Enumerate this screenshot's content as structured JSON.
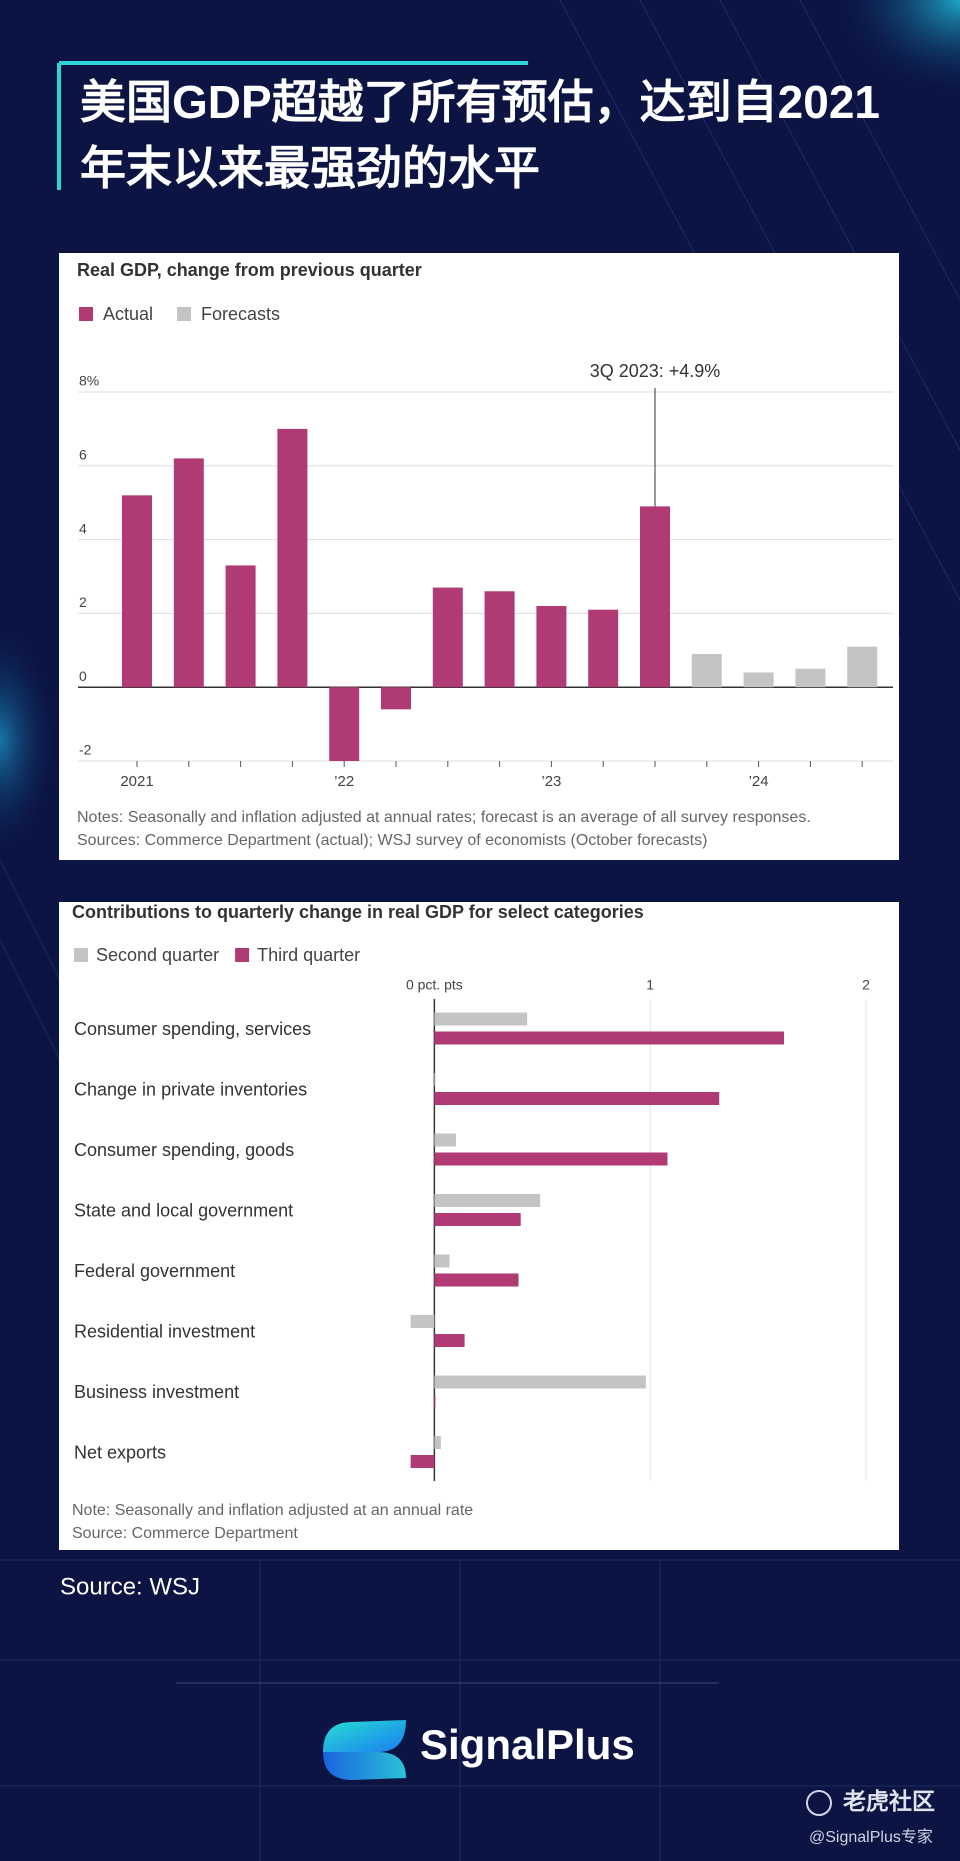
{
  "title": [
    "美国GDP超越了所有预估，达到自2021",
    "年末以来最强劲的水平"
  ],
  "chart_data": [
    {
      "type": "bar",
      "title": "Real GDP, change from previous quarter",
      "categories": [
        "2021",
        null,
        null,
        null,
        "’22",
        null,
        null,
        null,
        "’23",
        null,
        null,
        null,
        "’24",
        null,
        null
      ],
      "series": [
        {
          "name": "Actual",
          "color": "#b03a73",
          "values": [
            5.2,
            6.2,
            3.3,
            7.0,
            -2.0,
            -0.6,
            2.7,
            2.6,
            2.2,
            2.1,
            4.9,
            null,
            null,
            null,
            null
          ]
        },
        {
          "name": "Forecasts",
          "color": "#c4c4c4",
          "values": [
            null,
            null,
            null,
            null,
            null,
            null,
            null,
            null,
            null,
            null,
            null,
            0.9,
            0.4,
            0.5,
            1.1
          ]
        }
      ],
      "ylim": [
        -2,
        8
      ],
      "yticks": [
        -2,
        0,
        2,
        4,
        6,
        {
          "value": 8,
          "label": "8%"
        }
      ],
      "grid": true,
      "annotation": "3Q 2023: +4.9%",
      "notes": [
        "Notes: Seasonally and inflation adjusted at annual rates; forecast is an average of all survey responses.",
        "Sources: Commerce Department (actual); WSJ survey of economists (October forecasts)"
      ]
    },
    {
      "type": "hbar",
      "title": "Contributions to quarterly change in real GDP for select categories",
      "categories": [
        "Consumer spending, services",
        "Change in private inventories",
        "Consumer spending, goods",
        "State and local government",
        "Federal government",
        "Residential investment",
        "Business investment",
        "Net exports"
      ],
      "series": [
        {
          "name": "Second quarter",
          "color": "#c4c4c4",
          "values": [
            0.43,
            0.0,
            0.1,
            0.49,
            0.07,
            -0.11,
            0.98,
            0.03
          ]
        },
        {
          "name": "Third quarter",
          "color": "#b03a73",
          "values": [
            1.62,
            1.32,
            1.08,
            0.4,
            0.39,
            0.14,
            0.0,
            -0.11
          ]
        }
      ],
      "xlim": [
        -0.15,
        2
      ],
      "xticks": [
        {
          "value": 0,
          "label": "0 pct. pts"
        },
        1,
        2
      ],
      "grid": true,
      "notes": [
        "Note: Seasonally and inflation adjusted at an annual rate",
        "Source: Commerce Department"
      ]
    }
  ],
  "source": "Source: WSJ",
  "brand": "SignalPlus",
  "watermark": [
    "老虎社区",
    "@SignalPlus专家"
  ]
}
